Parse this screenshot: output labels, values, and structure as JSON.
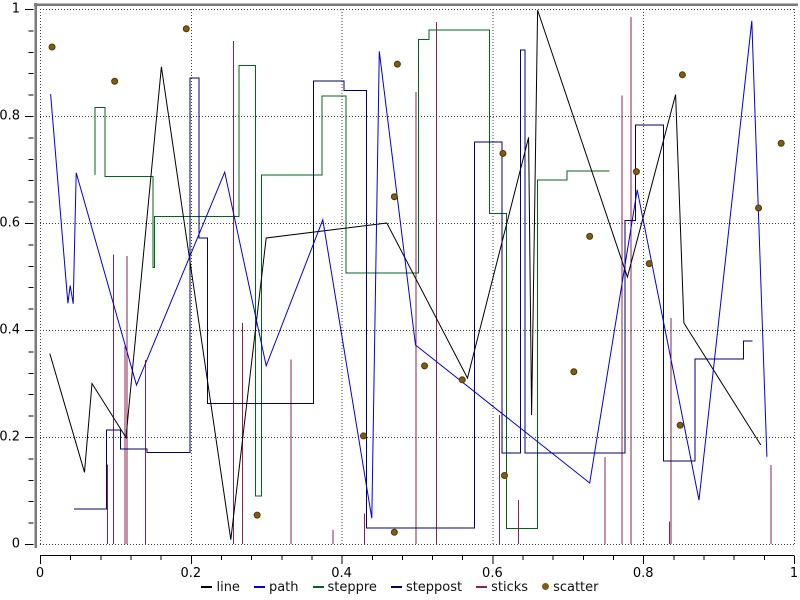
{
  "chart_data": {
    "type": "mixed",
    "title": "",
    "xlabel": "",
    "ylabel": "",
    "xlim": [
      0,
      1
    ],
    "ylim": [
      0,
      1
    ],
    "x_tick_labels": [
      "0",
      "0.2",
      "0.4",
      "0.6",
      "0.8",
      "1"
    ],
    "y_tick_labels": [
      "0",
      "0.2",
      "0.4",
      "0.6",
      "0.8",
      "1"
    ],
    "major_tick_values": [
      0,
      0.2,
      0.4,
      0.6,
      0.8,
      1
    ],
    "minor_tick_step": 0.04,
    "grid": "dotted at major ticks",
    "legend_position": "bottom-center",
    "series": [
      {
        "name": "line",
        "style": "line",
        "color": "#000000",
        "points": [
          [
            0.013,
            0.356
          ],
          [
            0.059,
            0.134
          ],
          [
            0.069,
            0.3
          ],
          [
            0.114,
            0.199
          ],
          [
            0.161,
            0.892
          ],
          [
            0.253,
            0.008
          ],
          [
            0.3,
            0.572
          ],
          [
            0.46,
            0.6
          ],
          [
            0.567,
            0.31
          ],
          [
            0.648,
            0.76
          ],
          [
            0.652,
            0.241
          ],
          [
            0.66,
            0.998
          ],
          [
            0.779,
            0.499
          ],
          [
            0.843,
            0.84
          ],
          [
            0.854,
            0.413
          ],
          [
            0.956,
            0.185
          ]
        ]
      },
      {
        "name": "path",
        "style": "path",
        "color": "#0000dd",
        "points": [
          [
            0.014,
            0.841
          ],
          [
            0.037,
            0.45
          ],
          [
            0.04,
            0.483
          ],
          [
            0.044,
            0.449
          ],
          [
            0.048,
            0.694
          ],
          [
            0.128,
            0.297
          ],
          [
            0.245,
            0.695
          ],
          [
            0.3,
            0.333
          ],
          [
            0.375,
            0.606
          ],
          [
            0.44,
            0.048
          ],
          [
            0.45,
            0.921
          ],
          [
            0.498,
            0.372
          ],
          [
            0.729,
            0.114
          ],
          [
            0.792,
            0.662
          ],
          [
            0.874,
            0.082
          ],
          [
            0.944,
            0.978
          ],
          [
            0.964,
            0.163
          ]
        ]
      },
      {
        "name": "steppre",
        "style": "steppre",
        "color": "#006618",
        "points": [
          [
            0.073,
            0.69
          ],
          [
            0.086,
            0.816
          ],
          [
            0.15,
            0.687
          ],
          [
            0.152,
            0.517
          ],
          [
            0.158,
            0.612
          ],
          [
            0.264,
            0.612
          ],
          [
            0.286,
            0.894
          ],
          [
            0.294,
            0.09
          ],
          [
            0.374,
            0.69
          ],
          [
            0.406,
            0.837
          ],
          [
            0.502,
            0.507
          ],
          [
            0.516,
            0.943
          ],
          [
            0.596,
            0.961
          ],
          [
            0.619,
            0.618
          ],
          [
            0.66,
            0.029
          ],
          [
            0.699,
            0.68
          ],
          [
            0.755,
            0.697
          ]
        ]
      },
      {
        "name": "steppost",
        "style": "steppost",
        "color": "#000070",
        "points": [
          [
            0.045,
            0.065
          ],
          [
            0.088,
            0.213
          ],
          [
            0.107,
            0.178
          ],
          [
            0.142,
            0.171
          ],
          [
            0.199,
            0.871
          ],
          [
            0.211,
            0.572
          ],
          [
            0.222,
            0.263
          ],
          [
            0.363,
            0.865
          ],
          [
            0.403,
            0.848
          ],
          [
            0.433,
            0.03
          ],
          [
            0.576,
            0.751
          ],
          [
            0.613,
            0.17
          ],
          [
            0.637,
            0.923
          ],
          [
            0.643,
            0.17
          ],
          [
            0.776,
            0.605
          ],
          [
            0.79,
            0.783
          ],
          [
            0.827,
            0.155
          ],
          [
            0.869,
            0.346
          ],
          [
            0.933,
            0.379
          ],
          [
            0.945,
            0.379
          ]
        ]
      },
      {
        "name": "sticks",
        "style": "sticks",
        "color": "#8b2252",
        "points": [
          [
            0.089,
            0.149
          ],
          [
            0.097,
            0.541
          ],
          [
            0.112,
            0.37
          ],
          [
            0.115,
            0.538
          ],
          [
            0.139,
            0.344
          ],
          [
            0.256,
            0.94
          ],
          [
            0.268,
            0.413
          ],
          [
            0.332,
            0.345
          ],
          [
            0.388,
            0.026
          ],
          [
            0.43,
            0.057
          ],
          [
            0.498,
            0.845
          ],
          [
            0.525,
            0.976
          ],
          [
            0.609,
            0.241
          ],
          [
            0.634,
            0.082
          ],
          [
            0.749,
            0.163
          ],
          [
            0.771,
            0.838
          ],
          [
            0.783,
            0.985
          ],
          [
            0.834,
            0.042
          ],
          [
            0.836,
            0.422
          ],
          [
            0.969,
            0.148
          ]
        ]
      },
      {
        "name": "scatter",
        "style": "scatter",
        "color": "#7e5c10",
        "points": [
          [
            0.016,
            0.929
          ],
          [
            0.099,
            0.865
          ],
          [
            0.194,
            0.963
          ],
          [
            0.288,
            0.054
          ],
          [
            0.429,
            0.202
          ],
          [
            0.47,
            0.022
          ],
          [
            0.47,
            0.649
          ],
          [
            0.474,
            0.897
          ],
          [
            0.51,
            0.333
          ],
          [
            0.56,
            0.307
          ],
          [
            0.614,
            0.73
          ],
          [
            0.616,
            0.128
          ],
          [
            0.708,
            0.322
          ],
          [
            0.729,
            0.575
          ],
          [
            0.791,
            0.696
          ],
          [
            0.808,
            0.524
          ],
          [
            0.849,
            0.222
          ],
          [
            0.852,
            0.877
          ],
          [
            0.953,
            0.628
          ],
          [
            0.983,
            0.749
          ]
        ]
      }
    ]
  },
  "legend": {
    "items": [
      {
        "label": "line",
        "color": "#000000",
        "marker": "dash"
      },
      {
        "label": "path",
        "color": "#0000dd",
        "marker": "dash"
      },
      {
        "label": "steppre",
        "color": "#006618",
        "marker": "dash"
      },
      {
        "label": "steppost",
        "color": "#000070",
        "marker": "dash"
      },
      {
        "label": "sticks",
        "color": "#8b2252",
        "marker": "dash"
      },
      {
        "label": "scatter",
        "color": "#7e5c10",
        "marker": "dot"
      }
    ]
  },
  "colors": {
    "background": "#ffffff",
    "axis_frame_gray": "#7a7a7a",
    "tick_and_text": "#000000",
    "grid_dots": "#404040"
  }
}
